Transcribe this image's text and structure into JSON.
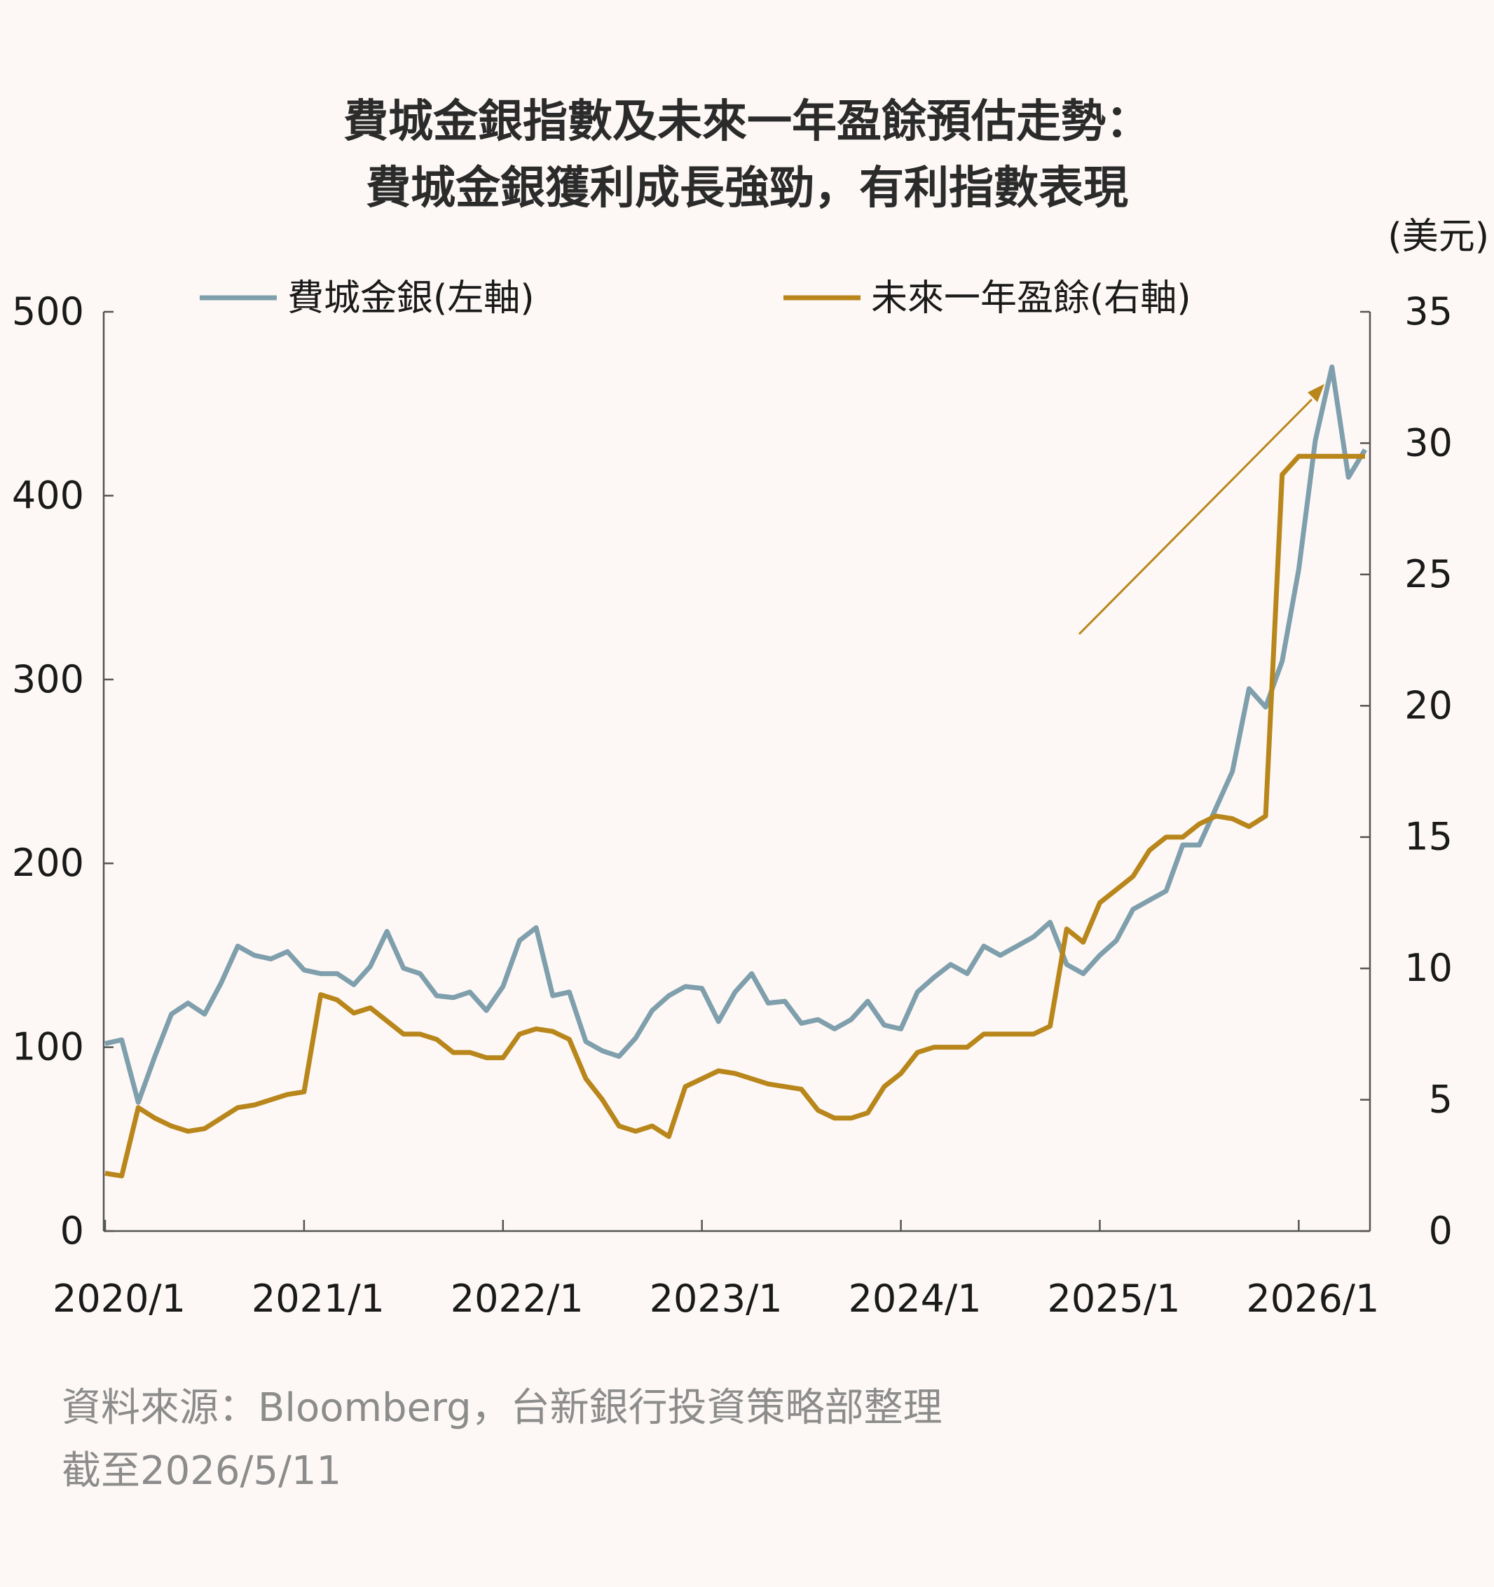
{
  "title": {
    "line1": "費城金銀指數及未來一年盈餘預估走勢：",
    "line2": "費城金銀獲利成長強勁，有利指數表現"
  },
  "source": {
    "line1": "資料來源：Bloomberg，台新銀行投資策略部整理",
    "line2": "截至2026/5/11"
  },
  "colors": {
    "index": "#7f9fad",
    "earnings": "#b8861b",
    "arrow": "#b8861b",
    "axis": "#555555",
    "background": "#fdf8f5"
  },
  "chart_data": {
    "type": "line",
    "xlabel": "",
    "x_ticks": [
      "2020/1",
      "2021/1",
      "2022/1",
      "2023/1",
      "2024/1",
      "2025/1",
      "2026/1"
    ],
    "x_range": [
      "2020-01",
      "2026-05"
    ],
    "y_left": {
      "label": "",
      "ticks": [
        "0",
        "100",
        "200",
        "300",
        "400",
        "500"
      ],
      "range": [
        0,
        500
      ]
    },
    "y_right": {
      "label": "(美元)",
      "ticks": [
        "0",
        "5",
        "10",
        "15",
        "20",
        "25",
        "30",
        "35"
      ],
      "range": [
        0,
        35
      ]
    },
    "legend": [
      "費城金銀(左軸)",
      "未來一年盈餘(右軸)"
    ],
    "legend_position": "top",
    "grid": false,
    "annotation": "upward arrow indicating rising trend",
    "series": [
      {
        "name": "費城金銀(左軸)",
        "axis": "left",
        "x": [
          "2020-01",
          "2020-02",
          "2020-03",
          "2020-04",
          "2020-05",
          "2020-06",
          "2020-07",
          "2020-08",
          "2020-09",
          "2020-10",
          "2020-11",
          "2020-12",
          "2021-01",
          "2021-02",
          "2021-03",
          "2021-04",
          "2021-05",
          "2021-06",
          "2021-07",
          "2021-08",
          "2021-09",
          "2021-10",
          "2021-11",
          "2021-12",
          "2022-01",
          "2022-02",
          "2022-03",
          "2022-04",
          "2022-05",
          "2022-06",
          "2022-07",
          "2022-08",
          "2022-09",
          "2022-10",
          "2022-11",
          "2022-12",
          "2023-01",
          "2023-02",
          "2023-03",
          "2023-04",
          "2023-05",
          "2023-06",
          "2023-07",
          "2023-08",
          "2023-09",
          "2023-10",
          "2023-11",
          "2023-12",
          "2024-01",
          "2024-02",
          "2024-03",
          "2024-04",
          "2024-05",
          "2024-06",
          "2024-07",
          "2024-08",
          "2024-09",
          "2024-10",
          "2024-11",
          "2024-12",
          "2025-01",
          "2025-02",
          "2025-03",
          "2025-04",
          "2025-05",
          "2025-06",
          "2025-07",
          "2025-08",
          "2025-09",
          "2025-10",
          "2025-11",
          "2025-12",
          "2026-01",
          "2026-02",
          "2026-03",
          "2026-04",
          "2026-05"
        ],
        "values": [
          102,
          104,
          70,
          95,
          118,
          124,
          118,
          135,
          155,
          150,
          148,
          152,
          142,
          140,
          140,
          134,
          144,
          163,
          143,
          140,
          128,
          127,
          130,
          120,
          133,
          158,
          165,
          128,
          130,
          103,
          98,
          95,
          105,
          120,
          128,
          133,
          132,
          114,
          130,
          140,
          124,
          125,
          113,
          115,
          110,
          115,
          125,
          112,
          110,
          130,
          138,
          145,
          140,
          155,
          150,
          155,
          160,
          168,
          145,
          140,
          150,
          158,
          175,
          180,
          185,
          210,
          210,
          230,
          250,
          295,
          285,
          310,
          360,
          430,
          470,
          410,
          425
        ]
      },
      {
        "name": "未來一年盈餘(右軸)",
        "axis": "right",
        "x": [
          "2020-01",
          "2020-02",
          "2020-03",
          "2020-04",
          "2020-05",
          "2020-06",
          "2020-07",
          "2020-08",
          "2020-09",
          "2020-10",
          "2020-11",
          "2020-12",
          "2021-01",
          "2021-02",
          "2021-03",
          "2021-04",
          "2021-05",
          "2021-06",
          "2021-07",
          "2021-08",
          "2021-09",
          "2021-10",
          "2021-11",
          "2021-12",
          "2022-01",
          "2022-02",
          "2022-03",
          "2022-04",
          "2022-05",
          "2022-06",
          "2022-07",
          "2022-08",
          "2022-09",
          "2022-10",
          "2022-11",
          "2022-12",
          "2023-01",
          "2023-02",
          "2023-03",
          "2023-04",
          "2023-05",
          "2023-06",
          "2023-07",
          "2023-08",
          "2023-09",
          "2023-10",
          "2023-11",
          "2023-12",
          "2024-01",
          "2024-02",
          "2024-03",
          "2024-04",
          "2024-05",
          "2024-06",
          "2024-07",
          "2024-08",
          "2024-09",
          "2024-10",
          "2024-11",
          "2024-12",
          "2025-01",
          "2025-02",
          "2025-03",
          "2025-04",
          "2025-05",
          "2025-06",
          "2025-07",
          "2025-08",
          "2025-09",
          "2025-10",
          "2025-11",
          "2025-12",
          "2026-01",
          "2026-02",
          "2026-03",
          "2026-04",
          "2026-05"
        ],
        "values": [
          2.2,
          2.1,
          4.7,
          4.3,
          4.0,
          3.8,
          3.9,
          4.3,
          4.7,
          4.8,
          5.0,
          5.2,
          5.3,
          9.0,
          8.8,
          8.3,
          8.5,
          8.0,
          7.5,
          7.5,
          7.3,
          6.8,
          6.8,
          6.6,
          6.6,
          7.5,
          7.7,
          7.6,
          7.3,
          5.8,
          5.0,
          4.0,
          3.8,
          4.0,
          3.6,
          5.5,
          5.8,
          6.1,
          6.0,
          5.8,
          5.6,
          5.5,
          5.4,
          4.6,
          4.3,
          4.3,
          4.5,
          5.5,
          6.0,
          6.8,
          7.0,
          7.0,
          7.0,
          7.5,
          7.5,
          7.5,
          7.5,
          7.8,
          11.5,
          11.0,
          12.5,
          13.0,
          13.5,
          14.5,
          15.0,
          15.0,
          15.5,
          15.8,
          15.7,
          15.4,
          15.8,
          28.8,
          29.5,
          29.5,
          29.5,
          29.5,
          29.5
        ]
      }
    ]
  }
}
